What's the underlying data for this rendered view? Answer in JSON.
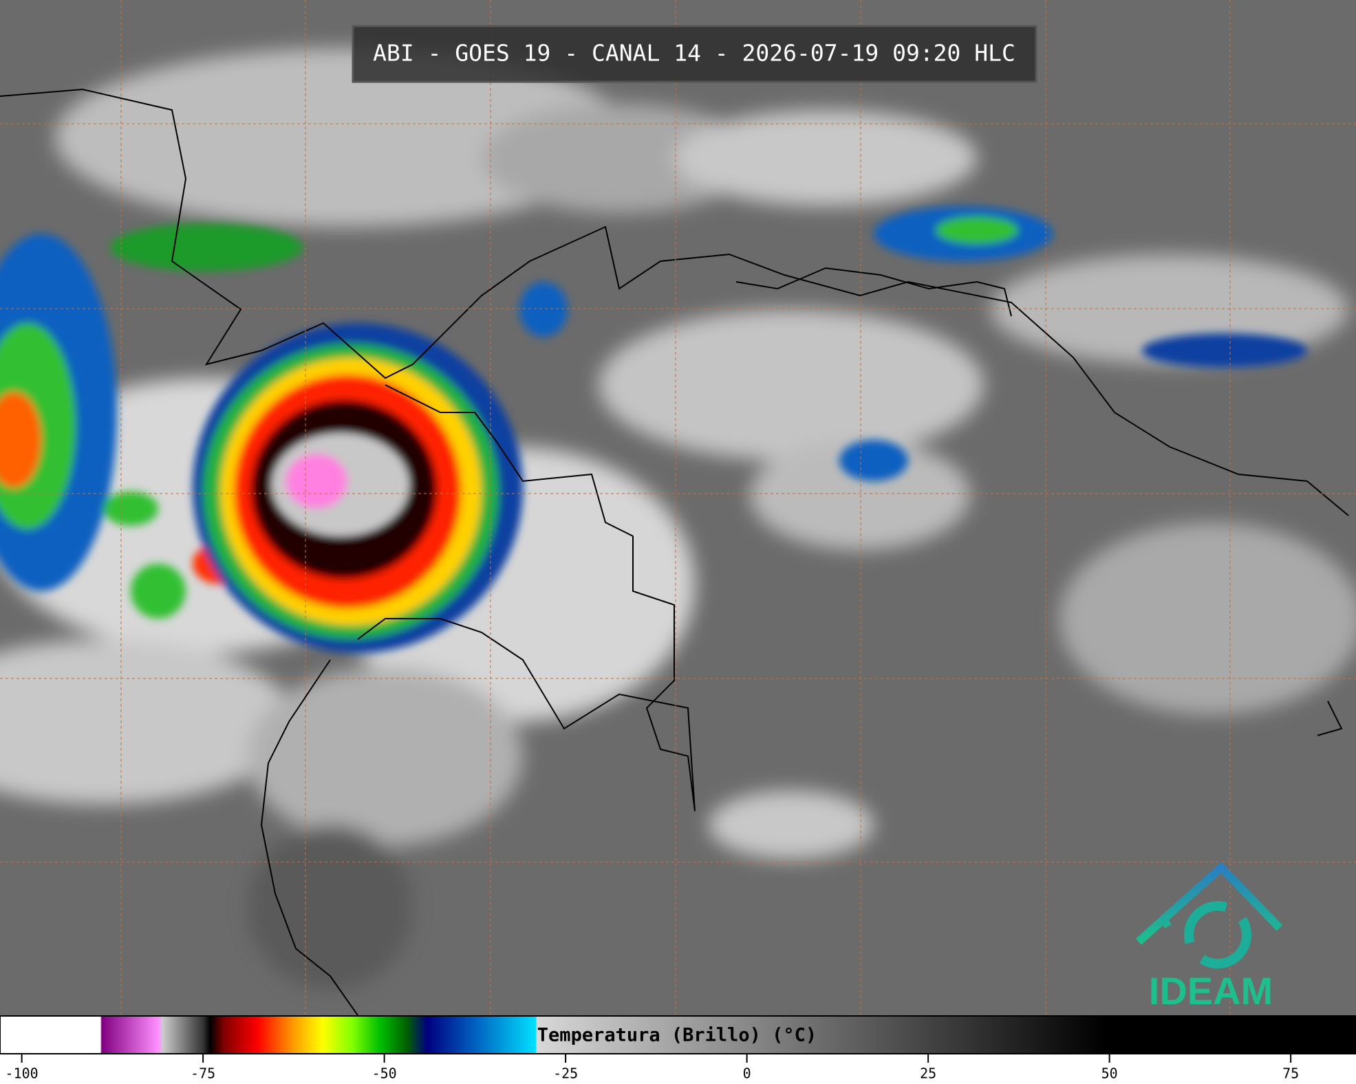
{
  "header": {
    "title": "ABI - GOES 19 - CANAL 14 - 2026-07-19 09:20 HLC"
  },
  "logo": {
    "text": "IDEAM"
  },
  "colorbar": {
    "label": "Temperatura (Brillo) (°C)",
    "lim": [
      -103,
      84
    ],
    "ticks": [
      -100,
      -75,
      -50,
      -25,
      0,
      25,
      50,
      75
    ]
  }
}
